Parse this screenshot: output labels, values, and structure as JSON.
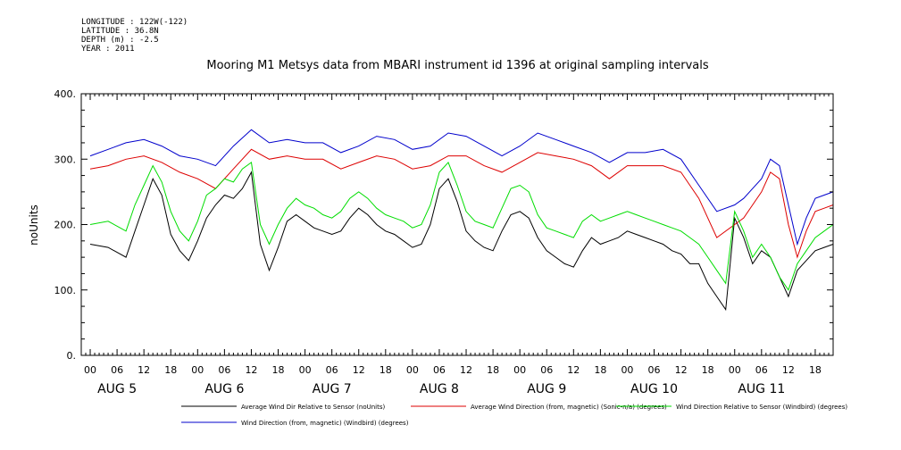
{
  "meta_lines": [
    "LONGITUDE : 122W(-122)",
    "LATITUDE : 36.8N",
    "DEPTH (m) : -2.5",
    "YEAR : 2011"
  ],
  "chart_data": {
    "type": "line",
    "title": "Mooring M1 Metsys data from MBARI instrument id 1396 at original sampling intervals",
    "ylabel": "noUnits",
    "xlabel": "",
    "ylim": [
      0,
      400
    ],
    "y_ticks": [
      0,
      100,
      200,
      300,
      400
    ],
    "y_tick_labels": [
      "0.",
      "100.",
      "200.",
      "300.",
      "400."
    ],
    "x_unit": "hours since Aug 5 2011 00:00",
    "xlim": [
      -2,
      166
    ],
    "hour_ticks": [
      0,
      6,
      12,
      18
    ],
    "hour_tick_labels": [
      "00",
      "06",
      "12",
      "18"
    ],
    "days": [
      "AUG  5",
      "AUG  6",
      "AUG  7",
      "AUG  8",
      "AUG  9",
      "AUG 10",
      "AUG 11"
    ],
    "grid": false,
    "legend_position": "bottom",
    "series": [
      {
        "name": "Average Wind Dir Relative to Sensor (noUnits)",
        "color": "#000000",
        "x": [
          0,
          4,
          8,
          10,
          12,
          14,
          16,
          18,
          20,
          22,
          24,
          26,
          28,
          30,
          32,
          34,
          36,
          38,
          40,
          42,
          44,
          46,
          48,
          50,
          52,
          54,
          56,
          58,
          60,
          62,
          64,
          66,
          68,
          70,
          72,
          74,
          76,
          78,
          80,
          82,
          84,
          86,
          88,
          90,
          92,
          94,
          96,
          98,
          100,
          102,
          104,
          106,
          108,
          110,
          112,
          114,
          116,
          118,
          120,
          122,
          124,
          126,
          128,
          130,
          132,
          134,
          136,
          138,
          140,
          142,
          144,
          146,
          148,
          150,
          152,
          154,
          156,
          158,
          160,
          162,
          164,
          166
        ],
        "y": [
          170,
          165,
          150,
          190,
          230,
          270,
          245,
          185,
          160,
          145,
          175,
          210,
          230,
          245,
          240,
          255,
          280,
          170,
          130,
          165,
          205,
          215,
          205,
          195,
          190,
          185,
          190,
          210,
          225,
          215,
          200,
          190,
          185,
          175,
          165,
          170,
          200,
          255,
          270,
          235,
          190,
          175,
          165,
          160,
          190,
          215,
          220,
          210,
          180,
          160,
          150,
          140,
          135,
          160,
          180,
          170,
          175,
          180,
          190,
          185,
          180,
          175,
          170,
          160,
          155,
          140,
          140,
          110,
          90,
          70,
          210,
          180,
          140,
          160,
          150,
          120,
          90,
          130,
          145,
          160,
          165,
          170
        ]
      },
      {
        "name": "Average Wind Direction (from, magnetic) (Sonic-n/a) (degrees)",
        "color": "#dd0000",
        "x": [
          0,
          4,
          8,
          12,
          16,
          20,
          24,
          28,
          32,
          36,
          40,
          44,
          48,
          52,
          56,
          60,
          64,
          68,
          72,
          76,
          80,
          84,
          88,
          92,
          96,
          100,
          104,
          108,
          112,
          116,
          120,
          124,
          128,
          132,
          136,
          140,
          144,
          146,
          148,
          150,
          152,
          154,
          156,
          158,
          160,
          162,
          164,
          166
        ],
        "y": [
          285,
          290,
          300,
          305,
          295,
          280,
          270,
          255,
          285,
          315,
          300,
          305,
          300,
          300,
          285,
          295,
          305,
          300,
          285,
          290,
          305,
          305,
          290,
          280,
          295,
          310,
          305,
          300,
          290,
          270,
          290,
          290,
          290,
          280,
          240,
          180,
          200,
          210,
          230,
          250,
          280,
          270,
          200,
          150,
          190,
          220,
          225,
          230
        ]
      },
      {
        "name": "Wind Direction Relative to Sensor (Windbird) (degrees)",
        "color": "#00dd00",
        "x": [
          0,
          4,
          8,
          10,
          12,
          14,
          16,
          18,
          20,
          22,
          24,
          26,
          28,
          30,
          32,
          34,
          36,
          38,
          40,
          42,
          44,
          46,
          48,
          50,
          52,
          54,
          56,
          58,
          60,
          62,
          64,
          66,
          68,
          70,
          72,
          74,
          76,
          78,
          80,
          82,
          84,
          86,
          88,
          90,
          92,
          94,
          96,
          98,
          100,
          102,
          104,
          106,
          108,
          110,
          112,
          114,
          116,
          118,
          120,
          122,
          124,
          126,
          128,
          130,
          132,
          134,
          136,
          138,
          140,
          142,
          144,
          146,
          148,
          150,
          152,
          154,
          156,
          158,
          160,
          162,
          164,
          166
        ],
        "y": [
          200,
          205,
          190,
          230,
          260,
          290,
          265,
          220,
          190,
          175,
          205,
          245,
          255,
          270,
          265,
          285,
          295,
          200,
          170,
          200,
          225,
          240,
          230,
          225,
          215,
          210,
          220,
          240,
          250,
          240,
          225,
          215,
          210,
          205,
          195,
          200,
          230,
          280,
          295,
          260,
          220,
          205,
          200,
          195,
          225,
          255,
          260,
          250,
          215,
          195,
          190,
          185,
          180,
          205,
          215,
          205,
          210,
          215,
          220,
          215,
          210,
          205,
          200,
          195,
          190,
          180,
          170,
          150,
          130,
          110,
          220,
          190,
          150,
          170,
          150,
          120,
          100,
          140,
          160,
          180,
          190,
          200
        ]
      },
      {
        "name": "Wind Direction (from, magnetic) (Windbird) (degrees)",
        "color": "#0000cc",
        "x": [
          0,
          4,
          8,
          12,
          16,
          20,
          24,
          28,
          32,
          36,
          40,
          44,
          48,
          52,
          56,
          60,
          64,
          68,
          72,
          76,
          80,
          84,
          88,
          92,
          96,
          100,
          104,
          108,
          112,
          116,
          120,
          124,
          128,
          132,
          136,
          140,
          144,
          146,
          148,
          150,
          152,
          154,
          156,
          158,
          160,
          162,
          164,
          166
        ],
        "y": [
          305,
          315,
          325,
          330,
          320,
          305,
          300,
          290,
          320,
          345,
          325,
          330,
          325,
          325,
          310,
          320,
          335,
          330,
          315,
          320,
          340,
          335,
          320,
          305,
          320,
          340,
          330,
          320,
          310,
          295,
          310,
          310,
          315,
          300,
          260,
          220,
          230,
          240,
          255,
          270,
          300,
          290,
          230,
          170,
          210,
          240,
          245,
          250
        ]
      }
    ]
  }
}
